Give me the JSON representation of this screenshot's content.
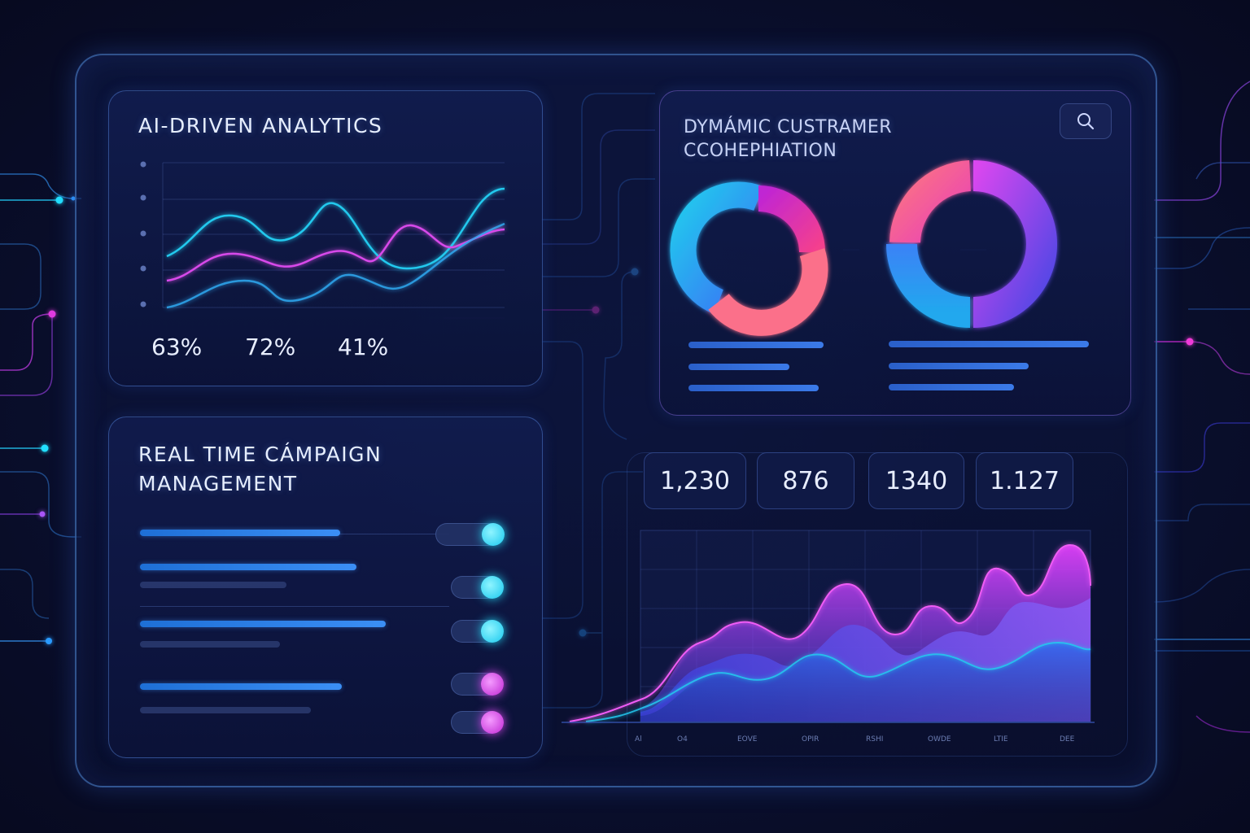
{
  "analytics": {
    "title": "AI-DRIVEN ANALYTICS",
    "percentages": [
      "63%",
      "72%",
      "41%"
    ]
  },
  "segmentation": {
    "title_line1": "DYMÁMIC CUSTRAMER",
    "title_line2": "CCOHEPHIATION",
    "search_icon": "search-icon"
  },
  "campaign": {
    "title_line1": "REAL TIME CÁMPAIGN",
    "title_line2": "MANAGEMENT",
    "toggles": [
      {
        "state": "on",
        "color": "#22d3ee"
      },
      {
        "state": "on",
        "color": "#22d3ee"
      },
      {
        "state": "on",
        "color": "#22d3ee"
      },
      {
        "state": "on",
        "color": "#d946ef"
      },
      {
        "state": "on",
        "color": "#d946ef"
      }
    ]
  },
  "metrics": {
    "values": [
      "1,230",
      "876",
      "1340",
      "1.127"
    ],
    "x_ticks": [
      "Al",
      "O4",
      "EOVE",
      "OPIR",
      "RSHI",
      "OWDE",
      "LTIE",
      "DEE"
    ]
  },
  "colors": {
    "cyan": "#22d3ee",
    "magenta": "#d946ef",
    "blue": "#3b82f6",
    "purple": "#8b5cf6",
    "background": "#0a0f2e"
  }
}
